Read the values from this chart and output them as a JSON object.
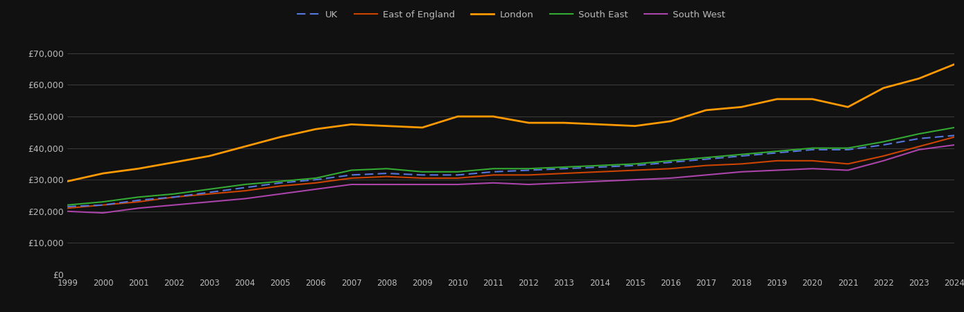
{
  "years": [
    1999,
    2000,
    2001,
    2002,
    2003,
    2004,
    2005,
    2006,
    2007,
    2008,
    2009,
    2010,
    2011,
    2012,
    2013,
    2014,
    2015,
    2016,
    2017,
    2018,
    2019,
    2020,
    2021,
    2022,
    2023,
    2024
  ],
  "UK": [
    21500,
    22000,
    23500,
    24500,
    26000,
    27500,
    29000,
    30000,
    31500,
    32000,
    31500,
    31500,
    32500,
    33000,
    33500,
    34000,
    34500,
    35500,
    36500,
    37500,
    38500,
    39500,
    39500,
    41000,
    43000,
    44000
  ],
  "East_of_England": [
    21000,
    22000,
    23000,
    24500,
    25500,
    26500,
    28000,
    29000,
    30500,
    31000,
    30500,
    30500,
    31500,
    31500,
    32000,
    32500,
    33000,
    33500,
    34500,
    35000,
    36000,
    36000,
    35000,
    37500,
    40500,
    43500
  ],
  "London": [
    29500,
    32000,
    33500,
    35500,
    37500,
    40500,
    43500,
    46000,
    47500,
    47000,
    46500,
    50000,
    50000,
    48000,
    48000,
    47500,
    47000,
    48500,
    52000,
    53000,
    55500,
    55500,
    53000,
    59000,
    62000,
    66500
  ],
  "South_East": [
    22000,
    23000,
    24500,
    25500,
    27000,
    28500,
    29500,
    30500,
    33000,
    33500,
    32500,
    32500,
    33500,
    33500,
    34000,
    34500,
    35000,
    36000,
    37000,
    38000,
    39000,
    40000,
    40000,
    42000,
    44500,
    46500
  ],
  "South_West": [
    20000,
    19500,
    21000,
    22000,
    23000,
    24000,
    25500,
    27000,
    28500,
    28500,
    28500,
    28500,
    29000,
    28500,
    29000,
    29500,
    30000,
    30500,
    31500,
    32500,
    33000,
    33500,
    33000,
    36000,
    39500,
    41000
  ],
  "line_colors": {
    "UK": "#5577dd",
    "East_of_England": "#cc4400",
    "London": "#ff9900",
    "South_East": "#33aa33",
    "South_West": "#aa44aa"
  },
  "background_color": "#111111",
  "grid_color": "#444444",
  "text_color": "#bbbbbb",
  "ylim": [
    0,
    75000
  ],
  "yticks": [
    0,
    10000,
    20000,
    30000,
    40000,
    50000,
    60000,
    70000
  ]
}
